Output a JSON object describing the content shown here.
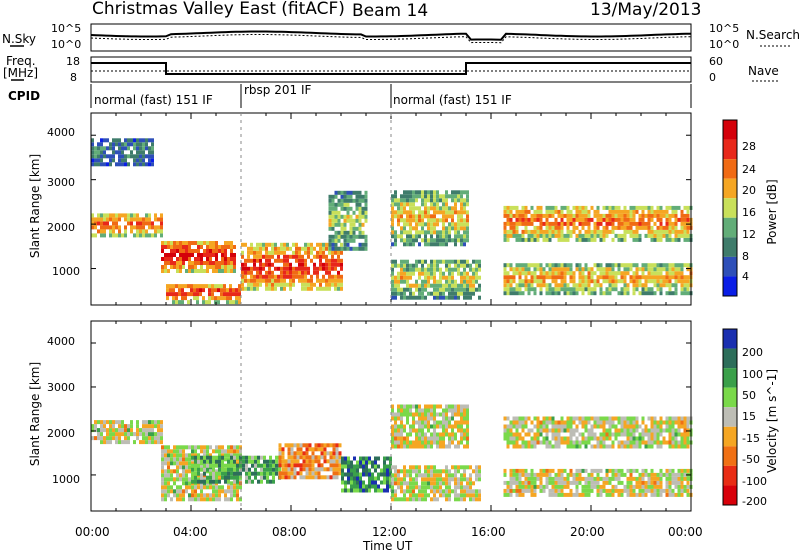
{
  "header": {
    "title": "Christmas Valley East (fitACF)",
    "beam": "Beam 14",
    "date": "13/May/2013"
  },
  "noise_panel": {
    "left_label": "N.Sky",
    "right_label": "N.Search",
    "left_ticks": [
      "10^5",
      "10^0"
    ],
    "right_ticks": [
      "10^5",
      "10^0"
    ]
  },
  "freq_panel": {
    "left_label_1": "Freq.",
    "left_label_2": "[MHz]",
    "right_label": "Nave",
    "left_ticks": [
      "18",
      "8"
    ],
    "right_ticks": [
      "60",
      "0"
    ]
  },
  "cpid": {
    "label": "CPID",
    "segments": [
      {
        "name": "normal (fast) 151 IF",
        "start_h": 0,
        "end_h": 6
      },
      {
        "name": "rbsp 201 IF",
        "start_h": 6,
        "end_h": 12
      },
      {
        "name": "normal (fast) 151 IF",
        "start_h": 12,
        "end_h": 24
      }
    ]
  },
  "xaxis": {
    "label": "Time UT",
    "ticks": [
      "00:00",
      "04:00",
      "08:00",
      "12:00",
      "16:00",
      "20:00",
      "00:00"
    ]
  },
  "chart_data": [
    {
      "type": "heatmap",
      "title": "",
      "xlabel": "Time UT",
      "ylabel": "Slant Range [km]",
      "ylim": [
        180,
        4500
      ],
      "xlim_hours": [
        0,
        24
      ],
      "yticks": [
        "1000",
        "2000",
        "3000",
        "4000"
      ],
      "colorbar": {
        "label": "Power [dB]",
        "ticks": [
          "4",
          "8",
          "12",
          "16",
          "20",
          "24",
          "28"
        ],
        "colors": [
          "#0a1ee6",
          "#2e4fb8",
          "#3f7c6b",
          "#62ad78",
          "#c9e05a",
          "#f5a623",
          "#f06a14",
          "#e8281a",
          "#d4000a"
        ]
      },
      "bands": [
        {
          "t0": 0.0,
          "t1": 2.8,
          "r0": 1700,
          "r1": 2200,
          "level": 0.8
        },
        {
          "t0": 0.0,
          "t1": 2.5,
          "r0": 3300,
          "r1": 3900,
          "level": 0.3
        },
        {
          "t0": 2.8,
          "t1": 5.8,
          "r0": 900,
          "r1": 1600,
          "level": 0.95
        },
        {
          "t0": 3.0,
          "t1": 6.0,
          "r0": 200,
          "r1": 650,
          "level": 0.85
        },
        {
          "t0": 6.0,
          "t1": 10.0,
          "r0": 500,
          "r1": 1500,
          "level": 0.9
        },
        {
          "t0": 9.5,
          "t1": 11.0,
          "r0": 1400,
          "r1": 2700,
          "level": 0.5
        },
        {
          "t0": 12.0,
          "t1": 15.0,
          "r0": 1500,
          "r1": 2700,
          "level": 0.6
        },
        {
          "t0": 12.0,
          "t1": 15.5,
          "r0": 300,
          "r1": 1200,
          "level": 0.55
        },
        {
          "t0": 16.5,
          "t1": 24.0,
          "r0": 1600,
          "r1": 2400,
          "level": 0.75
        },
        {
          "t0": 16.5,
          "t1": 24.0,
          "r0": 400,
          "r1": 1100,
          "level": 0.65
        }
      ]
    },
    {
      "type": "heatmap",
      "title": "",
      "xlabel": "Time UT",
      "ylabel": "Slant Range [km]",
      "ylim": [
        180,
        4500
      ],
      "xlim_hours": [
        0,
        24
      ],
      "yticks": [
        "1000",
        "2000",
        "3000",
        "4000"
      ],
      "colorbar": {
        "label": "Velocity [m s^-1]",
        "ticks": [
          "200",
          "100",
          "50",
          "15",
          "-15",
          "-50",
          "-100",
          "-200"
        ],
        "colors": [
          "#1a2fb0",
          "#2d6e5a",
          "#3aa04a",
          "#7ad94a",
          "#bdbdb5",
          "#f5a623",
          "#f07014",
          "#e82c14",
          "#d8000a"
        ]
      },
      "bands": [
        {
          "t0": 0.0,
          "t1": 2.8,
          "r0": 1700,
          "r1": 2200,
          "level": 0.5
        },
        {
          "t0": 2.8,
          "t1": 6.0,
          "r0": 400,
          "r1": 1600,
          "level": 0.5
        },
        {
          "t0": 4.0,
          "t1": 7.5,
          "r0": 800,
          "r1": 1400,
          "level": 0.3
        },
        {
          "t0": 7.5,
          "t1": 10.0,
          "r0": 900,
          "r1": 1700,
          "level": 0.65
        },
        {
          "t0": 10.0,
          "t1": 12.0,
          "r0": 600,
          "r1": 1400,
          "level": 0.25
        },
        {
          "t0": 12.0,
          "t1": 15.5,
          "r0": 400,
          "r1": 1200,
          "level": 0.5
        },
        {
          "t0": 12.0,
          "t1": 15.0,
          "r0": 1600,
          "r1": 2600,
          "level": 0.5
        },
        {
          "t0": 16.5,
          "t1": 24.0,
          "r0": 1600,
          "r1": 2300,
          "level": 0.5
        },
        {
          "t0": 16.5,
          "t1": 24.0,
          "r0": 500,
          "r1": 1100,
          "level": 0.5
        }
      ]
    }
  ]
}
